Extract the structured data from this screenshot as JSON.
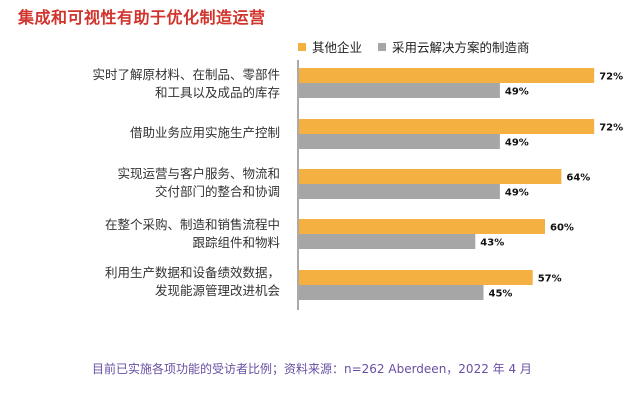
{
  "chart_data": {
    "type": "bar",
    "orientation": "horizontal",
    "title": "集成和可视性有助于优化制造运营",
    "categories": [
      [
        "实时了解原材料、在制品、零部件",
        "和工具以及成品的库存"
      ],
      [
        "借助业务应用实施生产控制"
      ],
      [
        "实现运营与客户服务、物流和",
        "交付部门的整合和协调"
      ],
      [
        "在整个采购、制造和销售流程中",
        "跟踪组件和物料"
      ],
      [
        "利用生产数据和设备绩效数据，",
        "发现能源管理改进机会"
      ]
    ],
    "series": [
      {
        "name": "其他企业",
        "color": "#f5b042",
        "values": [
          72,
          72,
          64,
          60,
          57
        ]
      },
      {
        "name": "采用云解决方案的制造商",
        "color": "#a6a6a6",
        "values": [
          49,
          49,
          49,
          43,
          45
        ]
      }
    ],
    "value_suffix": "%",
    "xlim": [
      0,
      80
    ],
    "grid": false,
    "legend_position": "top"
  },
  "footnote": "目前已实施各项功能的受访者比例；资料来源：n=262 Aberdeen，2022 年 4 月"
}
